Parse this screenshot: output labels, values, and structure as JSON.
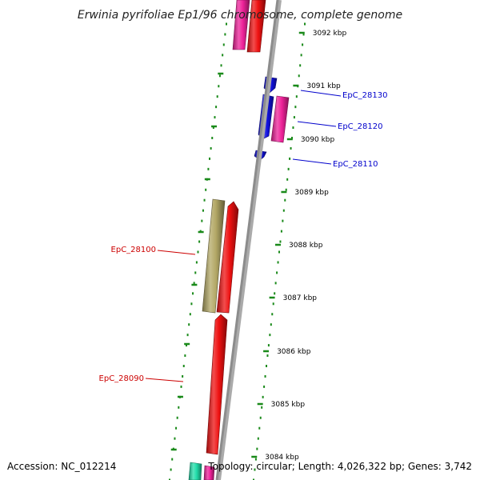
{
  "title": "Erwinia pyrifoliae Ep1/96 chromosome, complete genome",
  "footer": {
    "accession": "Accession: NC_012214",
    "topology": "Topology: circular; Length: 4,026,322 bp; Genes: 3,742"
  },
  "colors": {
    "backbone": "#8c8c8c",
    "tick": "#1a8a1a",
    "label_left": "#cc0000",
    "label_right": "#0000cc",
    "gene_red": "#ee1111",
    "gene_pink": "#ee2299",
    "gene_blue": "#1111dd",
    "gene_olive": "#b3a866",
    "gene_teal": "#22ddaa"
  },
  "ticks": [
    {
      "label": "3092 kbp"
    },
    {
      "label": "3091 kbp"
    },
    {
      "label": "3090 kbp"
    },
    {
      "label": "3089 kbp"
    },
    {
      "label": "3088 kbp"
    },
    {
      "label": "3087 kbp"
    },
    {
      "label": "3086 kbp"
    },
    {
      "label": "3085 kbp"
    },
    {
      "label": "3084 kbp"
    }
  ],
  "gene_labels": [
    {
      "id": "EpC_28130",
      "label": "EpC_28130",
      "side": "right"
    },
    {
      "id": "EpC_28120",
      "label": "EpC_28120",
      "side": "right"
    },
    {
      "id": "EpC_28110",
      "label": "EpC_28110",
      "side": "right"
    },
    {
      "id": "EpC_28100",
      "label": "EpC_28100",
      "side": "left"
    },
    {
      "id": "EpC_28090",
      "label": "EpC_28090",
      "side": "left"
    }
  ]
}
